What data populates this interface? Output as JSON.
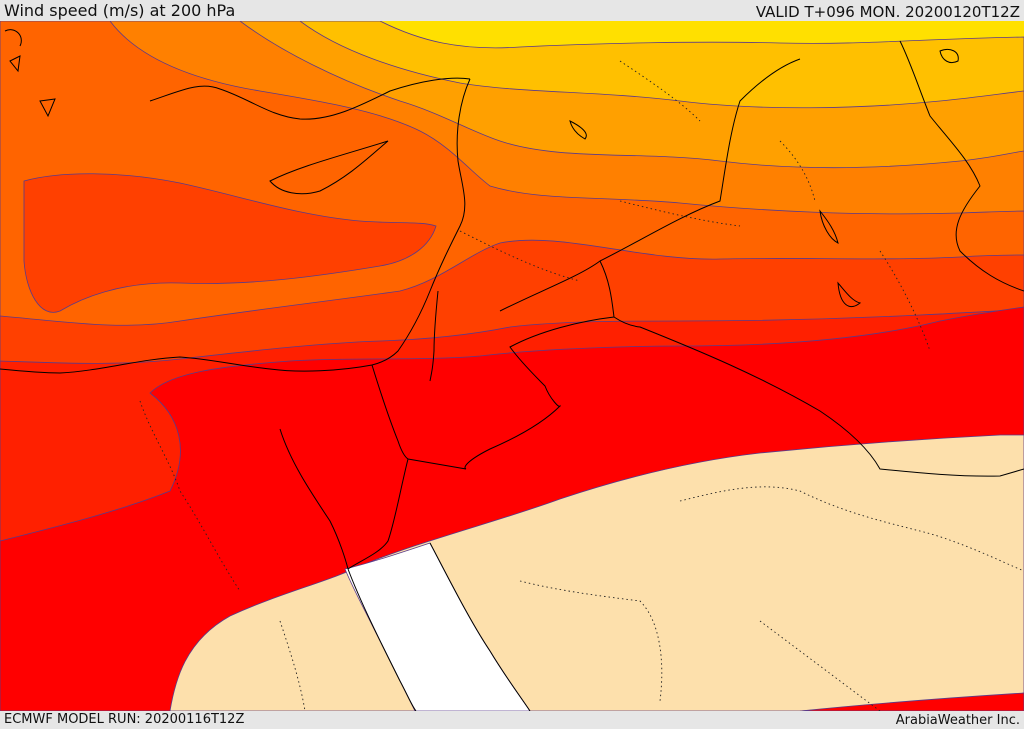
{
  "header": {
    "title": "Wind speed (m/s) at 200 hPa",
    "valid": "VALID T+096 MON. 20200120T12Z"
  },
  "footer": {
    "model_run": "ECMWF MODEL RUN: 20200116T12Z",
    "credit": "ArabiaWeather Inc."
  },
  "colors": {
    "band_yellow": "#ffe000",
    "band_gold": "#ffc000",
    "band_amber": "#ffa000",
    "band_orange": "#ff8000",
    "band_dark_orange": "#ff6400",
    "band_red_orange": "#ff4000",
    "band_red_dark": "#ff2000",
    "band_red": "#ff0000",
    "low_wind": "#fde0ac",
    "calm": "#ffffff",
    "coastline": "#000000",
    "contour": "#5a3a8a"
  }
}
